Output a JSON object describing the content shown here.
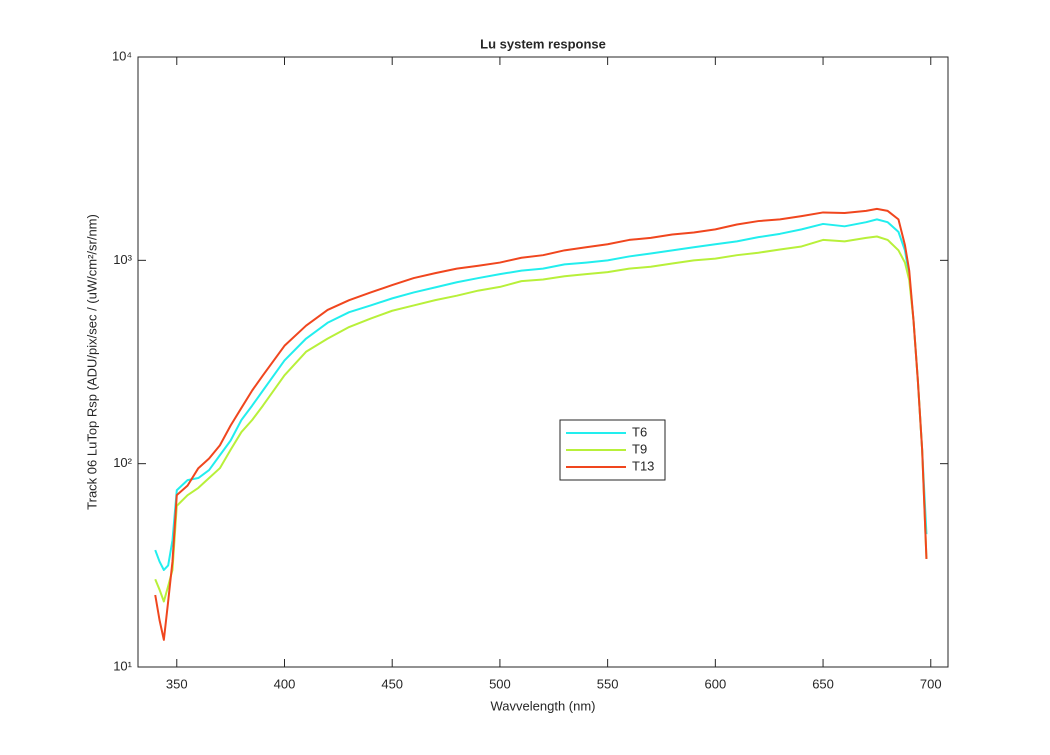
{
  "chart_data": {
    "type": "line",
    "title": "Lu system response",
    "x_label": "Wavvelength (nm)",
    "y_label": "Track 06 LuTop Rsp (ADU/pix/sec / (uW/cm²/sr/nm)",
    "log_y": true,
    "legend": "center",
    "xlim": [
      332,
      708
    ],
    "xticks": [
      350,
      400,
      450,
      500,
      550,
      600,
      650,
      700
    ],
    "ylim": [
      10,
      10000
    ],
    "yticks": [
      {
        "value": 10,
        "label": "10¹"
      },
      {
        "value": 100,
        "label": "10²"
      },
      {
        "value": 1000,
        "label": "10³"
      },
      {
        "value": 10000,
        "label": "10⁴"
      }
    ],
    "x": [
      340,
      342,
      344,
      346,
      348,
      350,
      355,
      360,
      365,
      370,
      375,
      380,
      385,
      390,
      400,
      410,
      420,
      430,
      440,
      450,
      460,
      470,
      480,
      490,
      500,
      510,
      520,
      530,
      540,
      550,
      560,
      570,
      580,
      590,
      600,
      610,
      620,
      630,
      640,
      650,
      660,
      670,
      675,
      680,
      685,
      688,
      690,
      692,
      694,
      696,
      698
    ],
    "series": [
      {
        "name": "T6",
        "color": "#22eeee",
        "values": [
          37.6,
          33,
          30,
          31.6,
          42,
          74,
          83,
          85,
          93,
          110,
          130,
          164,
          193,
          229,
          322,
          412,
          493,
          556,
          600,
          650,
          695,
          736,
          780,
          818,
          855,
          890,
          910,
          955,
          975,
          1000,
          1045,
          1080,
          1120,
          1160,
          1200,
          1240,
          1300,
          1350,
          1420,
          1510,
          1470,
          1540,
          1590,
          1540,
          1380,
          1120,
          840,
          505,
          257,
          117,
          45
        ]
      },
      {
        "name": "T9",
        "color": "#b8f03a",
        "values": [
          27,
          24,
          21,
          25,
          30,
          62,
          70,
          76,
          85,
          95,
          117,
          143,
          164,
          193,
          272,
          355,
          412,
          470,
          517,
          565,
          600,
          637,
          670,
          710,
          740,
          790,
          805,
          835,
          855,
          875,
          910,
          930,
          965,
          1000,
          1020,
          1060,
          1090,
          1130,
          1170,
          1260,
          1240,
          1290,
          1310,
          1260,
          1120,
          975,
          800,
          505,
          257,
          117,
          34
        ]
      },
      {
        "name": "T13",
        "color": "#f0461e",
        "values": [
          22.6,
          17,
          13.6,
          21,
          33,
          70,
          78,
          95,
          106,
          123,
          154,
          188,
          229,
          272,
          380,
          477,
          570,
          637,
          695,
          756,
          818,
          865,
          910,
          941,
          975,
          1030,
          1060,
          1120,
          1160,
          1200,
          1260,
          1290,
          1340,
          1370,
          1420,
          1500,
          1560,
          1590,
          1650,
          1720,
          1710,
          1750,
          1790,
          1750,
          1590,
          1190,
          890,
          505,
          257,
          117,
          34
        ]
      }
    ]
  }
}
